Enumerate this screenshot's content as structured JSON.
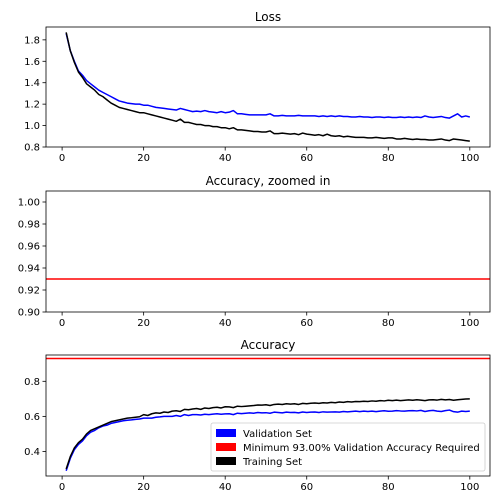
{
  "colors": {
    "validation": "#0000ff",
    "training": "#000000",
    "required": "#ff0000"
  },
  "chart_data": [
    {
      "type": "line",
      "title": "Loss",
      "xlim": [
        -3.95,
        104.95
      ],
      "ylim": [
        0.8,
        1.92
      ],
      "xticks": [
        0,
        20,
        40,
        60,
        80,
        100
      ],
      "yticks": [
        0.8,
        1.0,
        1.2,
        1.4,
        1.6,
        1.8
      ],
      "x": {
        "start": 1,
        "end": 100
      },
      "series": [
        {
          "key": "validation",
          "values": [
            1.86,
            1.7,
            1.6,
            1.51,
            1.47,
            1.42,
            1.39,
            1.36,
            1.33,
            1.31,
            1.29,
            1.27,
            1.25,
            1.23,
            1.22,
            1.21,
            1.205,
            1.2,
            1.2,
            1.19,
            1.19,
            1.18,
            1.17,
            1.165,
            1.16,
            1.155,
            1.15,
            1.145,
            1.16,
            1.15,
            1.14,
            1.13,
            1.135,
            1.13,
            1.14,
            1.13,
            1.125,
            1.12,
            1.13,
            1.12,
            1.125,
            1.14,
            1.11,
            1.11,
            1.105,
            1.1,
            1.1,
            1.1,
            1.1,
            1.1,
            1.11,
            1.09,
            1.09,
            1.095,
            1.09,
            1.09,
            1.09,
            1.095,
            1.09,
            1.09,
            1.09,
            1.09,
            1.085,
            1.09,
            1.085,
            1.09,
            1.085,
            1.09,
            1.085,
            1.085,
            1.08,
            1.08,
            1.085,
            1.08,
            1.08,
            1.075,
            1.08,
            1.08,
            1.075,
            1.08,
            1.075,
            1.075,
            1.08,
            1.075,
            1.08,
            1.075,
            1.08,
            1.075,
            1.09,
            1.08,
            1.075,
            1.08,
            1.085,
            1.075,
            1.07,
            1.09,
            1.11,
            1.08,
            1.09,
            1.08
          ]
        },
        {
          "key": "training",
          "values": [
            1.87,
            1.7,
            1.59,
            1.5,
            1.45,
            1.39,
            1.36,
            1.33,
            1.29,
            1.27,
            1.24,
            1.21,
            1.19,
            1.17,
            1.16,
            1.15,
            1.14,
            1.13,
            1.12,
            1.12,
            1.11,
            1.1,
            1.09,
            1.08,
            1.07,
            1.06,
            1.05,
            1.04,
            1.06,
            1.03,
            1.03,
            1.02,
            1.01,
            1.01,
            1.0,
            1.0,
            0.99,
            0.99,
            0.98,
            0.98,
            0.97,
            0.98,
            0.96,
            0.96,
            0.955,
            0.95,
            0.945,
            0.945,
            0.94,
            0.94,
            0.95,
            0.925,
            0.925,
            0.93,
            0.925,
            0.92,
            0.925,
            0.915,
            0.93,
            0.92,
            0.915,
            0.91,
            0.915,
            0.905,
            0.92,
            0.905,
            0.9,
            0.905,
            0.895,
            0.9,
            0.895,
            0.89,
            0.89,
            0.89,
            0.885,
            0.885,
            0.89,
            0.885,
            0.88,
            0.885,
            0.885,
            0.875,
            0.875,
            0.88,
            0.875,
            0.87,
            0.875,
            0.87,
            0.87,
            0.865,
            0.865,
            0.87,
            0.875,
            0.865,
            0.86,
            0.875,
            0.87,
            0.865,
            0.86,
            0.855
          ]
        }
      ],
      "hlines": []
    },
    {
      "type": "line",
      "title": "Accuracy, zoomed in",
      "xlim": [
        -3.95,
        104.95
      ],
      "ylim": [
        0.9,
        1.01
      ],
      "xticks": [
        0,
        20,
        40,
        60,
        80,
        100
      ],
      "yticks": [
        0.9,
        0.92,
        0.94,
        0.96,
        0.98,
        1.0
      ],
      "ytick_decimals": 2,
      "series": [],
      "hlines": [
        {
          "key": "required",
          "y": 0.93
        }
      ]
    },
    {
      "type": "line",
      "title": "Accuracy",
      "xlim": [
        -3.95,
        104.95
      ],
      "ylim": [
        0.26,
        0.95
      ],
      "xticks": [
        0,
        20,
        40,
        60,
        80,
        100
      ],
      "yticks": [
        0.4,
        0.6,
        0.8
      ],
      "x": {
        "start": 1,
        "end": 100
      },
      "series": [
        {
          "key": "validation",
          "values": [
            0.29,
            0.36,
            0.41,
            0.44,
            0.46,
            0.49,
            0.51,
            0.52,
            0.535,
            0.545,
            0.55,
            0.56,
            0.565,
            0.57,
            0.575,
            0.578,
            0.58,
            0.583,
            0.585,
            0.59,
            0.59,
            0.59,
            0.595,
            0.597,
            0.6,
            0.6,
            0.6,
            0.605,
            0.6,
            0.61,
            0.605,
            0.61,
            0.61,
            0.608,
            0.612,
            0.61,
            0.613,
            0.615,
            0.612,
            0.614,
            0.615,
            0.61,
            0.618,
            0.616,
            0.618,
            0.62,
            0.618,
            0.622,
            0.62,
            0.621,
            0.618,
            0.624,
            0.622,
            0.62,
            0.624,
            0.622,
            0.623,
            0.62,
            0.625,
            0.622,
            0.624,
            0.625,
            0.622,
            0.626,
            0.624,
            0.625,
            0.626,
            0.624,
            0.628,
            0.626,
            0.628,
            0.63,
            0.627,
            0.63,
            0.628,
            0.63,
            0.627,
            0.63,
            0.632,
            0.629,
            0.63,
            0.633,
            0.631,
            0.63,
            0.632,
            0.633,
            0.631,
            0.634,
            0.628,
            0.632,
            0.634,
            0.63,
            0.628,
            0.633,
            0.636,
            0.627,
            0.624,
            0.63,
            0.628,
            0.63
          ]
        },
        {
          "key": "training",
          "values": [
            0.3,
            0.37,
            0.42,
            0.45,
            0.47,
            0.5,
            0.52,
            0.53,
            0.54,
            0.55,
            0.56,
            0.57,
            0.575,
            0.58,
            0.585,
            0.59,
            0.592,
            0.595,
            0.598,
            0.61,
            0.605,
            0.615,
            0.62,
            0.618,
            0.625,
            0.622,
            0.63,
            0.632,
            0.628,
            0.64,
            0.638,
            0.642,
            0.645,
            0.64,
            0.648,
            0.645,
            0.65,
            0.652,
            0.648,
            0.655,
            0.654,
            0.65,
            0.658,
            0.656,
            0.658,
            0.66,
            0.662,
            0.665,
            0.664,
            0.666,
            0.662,
            0.668,
            0.67,
            0.668,
            0.672,
            0.67,
            0.672,
            0.668,
            0.674,
            0.672,
            0.675,
            0.676,
            0.674,
            0.678,
            0.676,
            0.68,
            0.678,
            0.682,
            0.68,
            0.684,
            0.682,
            0.685,
            0.684,
            0.686,
            0.685,
            0.688,
            0.686,
            0.69,
            0.688,
            0.692,
            0.69,
            0.693,
            0.69,
            0.692,
            0.694,
            0.692,
            0.695,
            0.693,
            0.69,
            0.694,
            0.695,
            0.693,
            0.697,
            0.694,
            0.696,
            0.692,
            0.695,
            0.697,
            0.699,
            0.7
          ]
        }
      ],
      "hlines": [
        {
          "key": "required",
          "y": 0.93
        }
      ],
      "legend": {
        "placement": "lower-right",
        "entries": [
          {
            "key": "validation",
            "label": "Validation Set"
          },
          {
            "key": "required",
            "label": "Minimum 93.00% Validation Accuracy Required"
          },
          {
            "key": "training",
            "label": "Training Set"
          }
        ]
      }
    }
  ]
}
